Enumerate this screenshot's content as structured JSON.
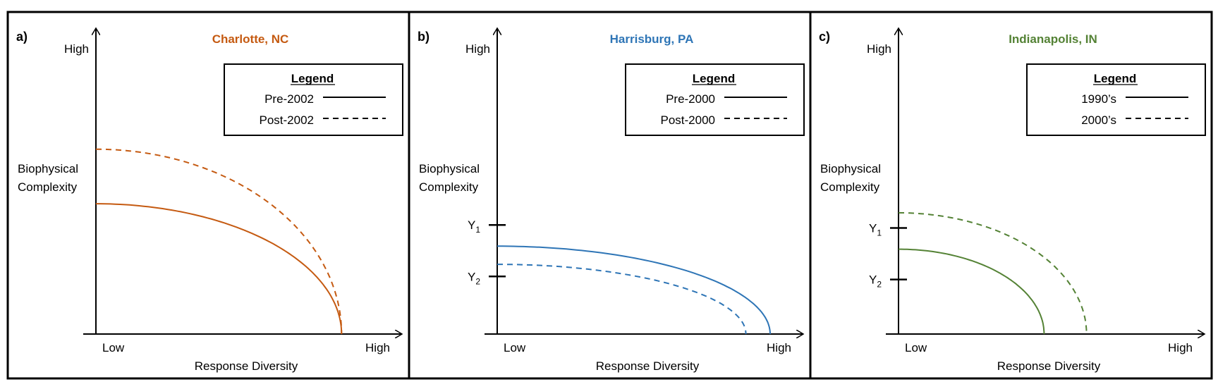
{
  "panels": [
    {
      "label": "a)",
      "title": "Charlotte, NC",
      "color": "#c55a11",
      "y_high": "High",
      "y_label_line1": "Biophysical",
      "y_label_line2": "Complexity",
      "x_low": "Low",
      "x_high": "High",
      "x_label": "Response Diversity",
      "y_ticks": [],
      "legend": {
        "title": "Legend",
        "solid": "Pre-2002",
        "dashed": "Post-2002"
      },
      "curves": {
        "solid": {
          "y_intercept": 0.43,
          "x_intercept": 0.81
        },
        "dashed": {
          "y_intercept": 0.61,
          "x_intercept": 0.81
        }
      }
    },
    {
      "label": "b)",
      "title": "Harrisburg, PA",
      "color": "#2e75b6",
      "y_high": "High",
      "y_label_line1": "Biophysical",
      "y_label_line2": "Complexity",
      "x_low": "Low",
      "x_high": "High",
      "x_label": "Response Diversity",
      "y_ticks": [
        {
          "main": "Y",
          "sub": "1",
          "value": 0.36
        },
        {
          "main": "Y",
          "sub": "2",
          "value": 0.19
        }
      ],
      "legend": {
        "title": "Legend",
        "solid": "Pre-2000",
        "dashed": "Post-2000"
      },
      "curves": {
        "solid": {
          "y_intercept": 0.29,
          "x_intercept": 0.9
        },
        "dashed": {
          "y_intercept": 0.23,
          "x_intercept": 0.82
        }
      }
    },
    {
      "label": "c)",
      "title": "Indianapolis, IN",
      "color": "#548235",
      "y_high": "High",
      "y_label_line1": "Biophysical",
      "y_label_line2": "Complexity",
      "x_low": "Low",
      "x_high": "High",
      "x_label": "Response Diversity",
      "y_ticks": [
        {
          "main": "Y",
          "sub": "1",
          "value": 0.35
        },
        {
          "main": "Y",
          "sub": "2",
          "value": 0.18
        }
      ],
      "legend": {
        "title": "Legend",
        "solid": "1990’s",
        "dashed": "2000’s"
      },
      "curves": {
        "solid": {
          "y_intercept": 0.28,
          "x_intercept": 0.48
        },
        "dashed": {
          "y_intercept": 0.4,
          "x_intercept": 0.62
        }
      }
    }
  ]
}
